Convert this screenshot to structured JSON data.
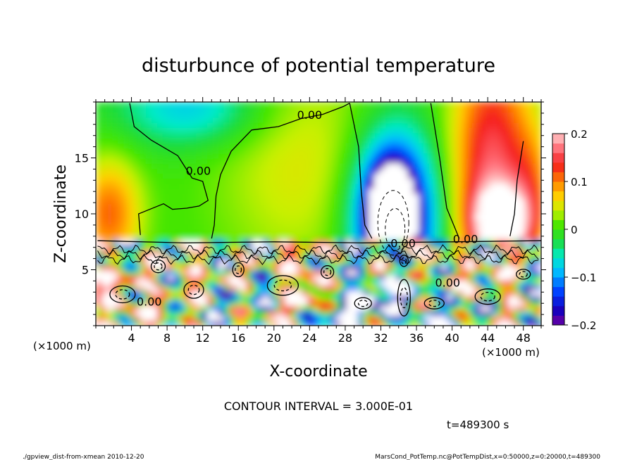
{
  "chart_data": {
    "type": "heatmap",
    "title": "disturbunce of potential temperature",
    "xlabel": "X-coordinate",
    "ylabel": "Z-coordinate",
    "x_unit_left": "(×1000 m)",
    "x_unit_right": "(×1000 m)",
    "xlim": [
      0,
      50
    ],
    "ylim": [
      0,
      20
    ],
    "x_ticks": [
      4,
      8,
      12,
      16,
      20,
      24,
      28,
      32,
      36,
      40,
      44,
      48
    ],
    "y_ticks": [
      5,
      10,
      15
    ],
    "colorbar": {
      "vmin": -0.2,
      "vmax": 0.2,
      "ticks": [
        {
          "value": 0.2,
          "label": "0.2"
        },
        {
          "value": 0.1,
          "label": "0.1"
        },
        {
          "value": 0,
          "label": "0"
        },
        {
          "value": -0.1,
          "label": "−0.1"
        },
        {
          "value": -0.2,
          "label": "−0.2"
        }
      ]
    },
    "contour_labels": [
      {
        "x": 24,
        "z": 18.5,
        "text": "0.00"
      },
      {
        "x": 11.5,
        "z": 13.5,
        "text": "0.00"
      },
      {
        "x": 34.5,
        "z": 7.0,
        "text": "0.00"
      },
      {
        "x": 41.5,
        "z": 7.4,
        "text": "0.00"
      },
      {
        "x": 39.5,
        "z": 3.5,
        "text": "0.00"
      },
      {
        "x": 6,
        "z": 1.8,
        "text": "0.00"
      }
    ],
    "contour_interval_text": "CONTOUR INTERVAL = 3.000E-01",
    "time_text": "t=489300 s"
  },
  "footer": {
    "left": "./gpview_dist-from-xmean   2010-12-20",
    "right": "MarsCond_PotTemp.nc@PotTempDist,x=0:50000,z=0:20000,t=489300"
  }
}
